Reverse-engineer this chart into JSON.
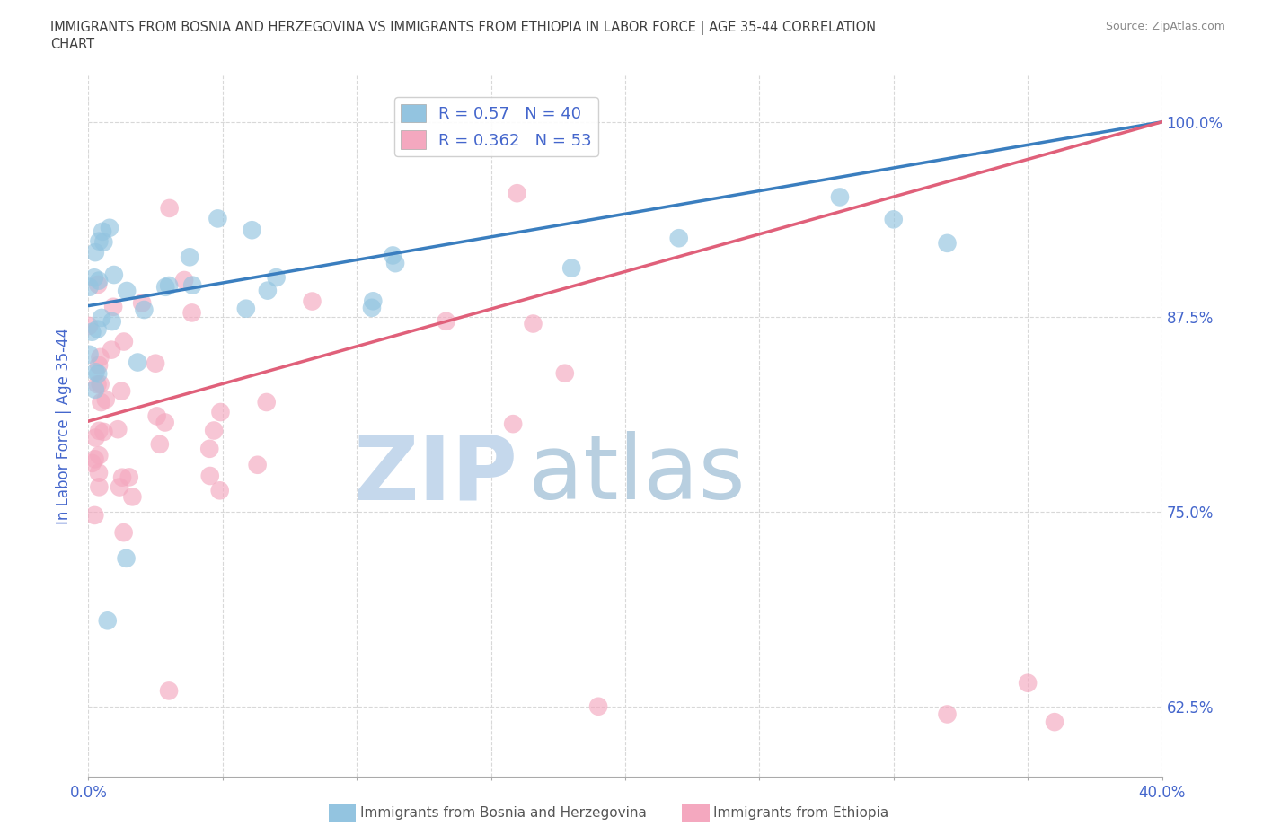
{
  "title_line1": "IMMIGRANTS FROM BOSNIA AND HERZEGOVINA VS IMMIGRANTS FROM ETHIOPIA IN LABOR FORCE | AGE 35-44 CORRELATION",
  "title_line2": "CHART",
  "source": "Source: ZipAtlas.com",
  "ylabel": "In Labor Force | Age 35-44",
  "xlim": [
    0.0,
    0.4
  ],
  "ylim": [
    0.58,
    1.03
  ],
  "yticks": [
    0.625,
    0.75,
    0.875,
    1.0
  ],
  "ytick_labels": [
    "62.5%",
    "75.0%",
    "87.5%",
    "100.0%"
  ],
  "xticks": [
    0.0,
    0.05,
    0.1,
    0.15,
    0.2,
    0.25,
    0.3,
    0.35,
    0.4
  ],
  "xtick_label_left": "0.0%",
  "xtick_label_right": "40.0%",
  "bosnia_R": 0.57,
  "bosnia_N": 40,
  "ethiopia_R": 0.362,
  "ethiopia_N": 53,
  "bosnia_color": "#93c4e0",
  "ethiopia_color": "#f4a8bf",
  "bosnia_line_color": "#3a7ebf",
  "ethiopia_line_color": "#e0607a",
  "watermark_zip": "ZIP",
  "watermark_atlas": "atlas",
  "watermark_color_zip": "#c5d8ec",
  "watermark_color_atlas": "#b8cfe0",
  "legend_label_bosnia": "Immigrants from Bosnia and Herzegovina",
  "legend_label_ethiopia": "Immigrants from Ethiopia",
  "background_color": "#ffffff",
  "grid_color": "#d8d8d8",
  "title_color": "#404040",
  "axis_label_color": "#4466cc",
  "tick_label_color": "#4466cc",
  "bosnia_line_intercept": 0.882,
  "bosnia_line_slope": 0.295,
  "ethiopia_line_intercept": 0.808,
  "ethiopia_line_slope": 0.48
}
